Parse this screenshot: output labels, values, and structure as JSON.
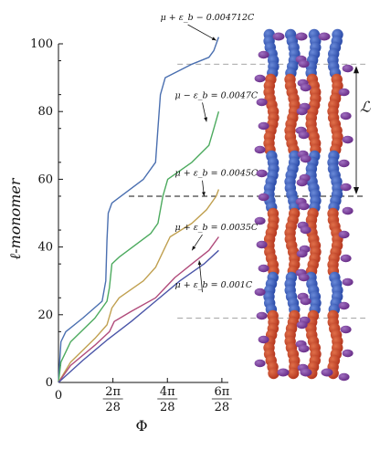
{
  "chart_data": {
    "type": "line",
    "xlabel": "Φ",
    "ylabel": "ℓ-monomer",
    "xlim": [
      0,
      0.7
    ],
    "ylim": [
      0,
      100
    ],
    "xticks": [
      {
        "value": 0,
        "num": "0",
        "den": ""
      },
      {
        "value": 0.2244,
        "num": "2π",
        "den": "28"
      },
      {
        "value": 0.4488,
        "num": "4π",
        "den": "28"
      },
      {
        "value": 0.6732,
        "num": "6π",
        "den": "28"
      }
    ],
    "yticks": [
      0,
      20,
      40,
      60,
      80,
      100
    ],
    "series": [
      {
        "name": "μ + ε_b − 0.004712C",
        "color": "#4a6fb0",
        "points": [
          [
            0,
            0
          ],
          [
            0.01,
            12
          ],
          [
            0.03,
            15
          ],
          [
            0.1,
            19
          ],
          [
            0.18,
            24
          ],
          [
            0.195,
            30
          ],
          [
            0.2,
            42
          ],
          [
            0.205,
            50
          ],
          [
            0.22,
            53
          ],
          [
            0.35,
            60
          ],
          [
            0.4,
            65
          ],
          [
            0.41,
            75
          ],
          [
            0.42,
            85
          ],
          [
            0.44,
            90
          ],
          [
            0.55,
            94
          ],
          [
            0.62,
            96
          ],
          [
            0.64,
            98
          ],
          [
            0.66,
            102
          ]
        ]
      },
      {
        "name": "μ − ε_b = 0.0047C",
        "color": "#4caa5e",
        "points": [
          [
            0,
            0
          ],
          [
            0.01,
            6
          ],
          [
            0.05,
            12
          ],
          [
            0.15,
            19
          ],
          [
            0.2,
            24
          ],
          [
            0.21,
            28
          ],
          [
            0.22,
            35
          ],
          [
            0.25,
            37
          ],
          [
            0.38,
            44
          ],
          [
            0.41,
            47
          ],
          [
            0.43,
            55
          ],
          [
            0.45,
            60
          ],
          [
            0.55,
            65
          ],
          [
            0.62,
            70
          ],
          [
            0.64,
            75
          ],
          [
            0.66,
            80
          ]
        ]
      },
      {
        "name": "μ + ε_b = 0.0045C",
        "color": "#c0a050",
        "points": [
          [
            0,
            0
          ],
          [
            0.05,
            6
          ],
          [
            0.15,
            13
          ],
          [
            0.2,
            17
          ],
          [
            0.22,
            22
          ],
          [
            0.25,
            25
          ],
          [
            0.35,
            30
          ],
          [
            0.4,
            34
          ],
          [
            0.44,
            40
          ],
          [
            0.46,
            43
          ],
          [
            0.55,
            47
          ],
          [
            0.61,
            51
          ],
          [
            0.65,
            55
          ],
          [
            0.66,
            57
          ]
        ]
      },
      {
        "name": "μ + ε_b = 0.0035C",
        "color": "#b04a7a",
        "points": [
          [
            0,
            0
          ],
          [
            0.05,
            5
          ],
          [
            0.15,
            11
          ],
          [
            0.21,
            15
          ],
          [
            0.23,
            18
          ],
          [
            0.3,
            21
          ],
          [
            0.4,
            25
          ],
          [
            0.44,
            28
          ],
          [
            0.48,
            31
          ],
          [
            0.55,
            35
          ],
          [
            0.62,
            39
          ],
          [
            0.66,
            43
          ]
        ]
      },
      {
        "name": "μ + ε_b = 0.001C",
        "color": "#4a55a8",
        "points": [
          [
            0,
            0
          ],
          [
            0.1,
            6.5
          ],
          [
            0.2,
            12.5
          ],
          [
            0.3,
            18
          ],
          [
            0.4,
            24
          ],
          [
            0.5,
            30
          ],
          [
            0.6,
            35
          ],
          [
            0.66,
            39
          ]
        ]
      }
    ],
    "annotations": [
      {
        "series": 0,
        "text": "μ + ε_b − 0.004712C",
        "at": [
          0.65,
          101
        ],
        "label_at": [
          0.42,
          107
        ]
      },
      {
        "series": 1,
        "text": "μ − ε_b = 0.0047C",
        "at": [
          0.61,
          77
        ],
        "label_at": [
          0.48,
          84
        ]
      },
      {
        "series": 2,
        "text": "μ + ε_b = 0.0045C",
        "at": [
          0.6,
          55
        ],
        "label_at": [
          0.48,
          61
        ]
      },
      {
        "series": 3,
        "text": "μ + ε_b = 0.0035C",
        "at": [
          0.55,
          39
        ],
        "label_at": [
          0.48,
          45
        ]
      },
      {
        "series": 4,
        "text": "μ + ε_b = 0.001C",
        "at": [
          0.58,
          36
        ],
        "label_at": [
          0.48,
          28
        ]
      }
    ],
    "reference_lines_y": [
      {
        "value": 94,
        "style": "dashed-gray"
      },
      {
        "value": 55,
        "style": "dashed-black"
      },
      {
        "value": 19,
        "style": "dashed-gray"
      }
    ],
    "bracket_label": "ℒ"
  },
  "colors": {
    "bead_blue": "#2a4aa8",
    "bead_red": "#b5371f",
    "bead_purple": "#6a2f8a"
  }
}
